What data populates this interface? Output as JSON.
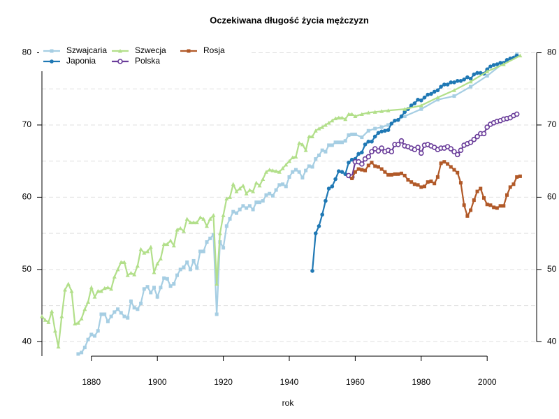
{
  "chart_data": {
    "type": "line",
    "title": "Oczekiwana długość życia mężczyzn",
    "x_label": "rok",
    "xlim": [
      1865,
      2015
    ],
    "xticks": [
      1880,
      1900,
      1920,
      1940,
      1960,
      1980,
      2000
    ],
    "ylim": [
      38,
      81.5
    ],
    "yticks": [
      40,
      50,
      60,
      70,
      80
    ],
    "grid_minor": [
      45,
      55,
      65,
      75
    ],
    "grid": true,
    "legend": "top-left",
    "series": [
      {
        "name": "Szwajcaria",
        "color": "#a6cee3",
        "marker": "square",
        "x": [
          1876,
          1877,
          1878,
          1879,
          1880,
          1881,
          1882,
          1883,
          1884,
          1885,
          1886,
          1887,
          1888,
          1889,
          1890,
          1891,
          1892,
          1893,
          1894,
          1895,
          1896,
          1897,
          1898,
          1899,
          1900,
          1901,
          1902,
          1903,
          1904,
          1905,
          1906,
          1907,
          1908,
          1909,
          1910,
          1911,
          1912,
          1913,
          1914,
          1915,
          1916,
          1917,
          1918,
          1919,
          1920,
          1921,
          1922,
          1923,
          1924,
          1925,
          1926,
          1927,
          1928,
          1929,
          1930,
          1931,
          1932,
          1933,
          1934,
          1935,
          1936,
          1937,
          1938,
          1939,
          1940,
          1941,
          1942,
          1943,
          1944,
          1945,
          1946,
          1947,
          1948,
          1949,
          1950,
          1951,
          1952,
          1953,
          1954,
          1955,
          1956,
          1957,
          1958,
          1959,
          1960,
          1962,
          1964,
          1966,
          1968,
          1970,
          1975,
          1980,
          1985,
          1990,
          1995,
          2000,
          2005,
          2009
        ],
        "values": [
          38.3,
          38.5,
          39.2,
          40.3,
          41,
          40.8,
          41.5,
          43.8,
          43.8,
          42.8,
          43.5,
          44.1,
          44.5,
          44,
          43.5,
          43.3,
          45.6,
          44.7,
          44.5,
          45.3,
          47.3,
          47.6,
          46.8,
          47.5,
          46.2,
          47.5,
          48.8,
          48.7,
          47.7,
          48,
          49.2,
          50,
          50.3,
          51,
          50,
          51.2,
          50.2,
          52.5,
          52.5,
          53.8,
          54.3,
          54.8,
          43.8,
          53.8,
          53,
          56,
          57,
          58,
          57.8,
          58.3,
          58.8,
          58.5,
          58.8,
          58.3,
          59.3,
          59.3,
          59.5,
          60.3,
          60.5,
          60.2,
          61,
          61.7,
          61.8,
          61.5,
          62.8,
          63.5,
          63.8,
          63.5,
          62.7,
          63.7,
          64.3,
          64.2,
          65.3,
          65.8,
          66.5,
          66.3,
          67.2,
          67.2,
          67.6,
          67.6,
          67.6,
          67.8,
          68.6,
          68.7,
          68.7,
          68.3,
          69.2,
          69.5,
          69.7,
          70,
          71.2,
          72.2,
          73.5,
          74,
          75.3,
          76.8,
          78.6,
          79.8
        ]
      },
      {
        "name": "Japonia",
        "color": "#1f78b4",
        "marker": "circle",
        "x": [
          1947,
          1948,
          1949,
          1950,
          1951,
          1952,
          1953,
          1954,
          1955,
          1956,
          1957,
          1958,
          1959,
          1960,
          1961,
          1962,
          1963,
          1964,
          1965,
          1966,
          1967,
          1968,
          1969,
          1970,
          1971,
          1972,
          1973,
          1974,
          1975,
          1976,
          1977,
          1978,
          1979,
          1980,
          1981,
          1982,
          1983,
          1984,
          1985,
          1986,
          1987,
          1988,
          1989,
          1990,
          1991,
          1992,
          1993,
          1994,
          1995,
          1996,
          1997,
          1998,
          1999,
          2000,
          2001,
          2002,
          2003,
          2004,
          2005,
          2006,
          2007,
          2008,
          2009
        ],
        "values": [
          49.8,
          55,
          56,
          57.6,
          59.5,
          61.2,
          61.5,
          62.5,
          63.6,
          63.5,
          63.2,
          64.8,
          65.2,
          65.3,
          66,
          66.2,
          67.3,
          67.7,
          67.7,
          68.4,
          68.9,
          69.1,
          69.2,
          69.3,
          70.2,
          70.6,
          70.7,
          71.2,
          71.8,
          72.2,
          72.7,
          73,
          73.5,
          73.4,
          73.8,
          74.2,
          74.3,
          74.6,
          74.8,
          75.3,
          75.6,
          75.6,
          75.9,
          75.9,
          76.1,
          76.1,
          76.3,
          76.6,
          76.4,
          77,
          77.2,
          77.2,
          77.1,
          77.7,
          78.1,
          78.3,
          78.4,
          78.6,
          78.6,
          79,
          79.2,
          79.3,
          79.6
        ]
      },
      {
        "name": "Szwecja",
        "color": "#b2df8a",
        "marker": "triangle",
        "x": [
          1865,
          1866,
          1867,
          1868,
          1869,
          1870,
          1871,
          1872,
          1873,
          1874,
          1875,
          1876,
          1877,
          1878,
          1879,
          1880,
          1881,
          1882,
          1883,
          1884,
          1885,
          1886,
          1887,
          1888,
          1889,
          1890,
          1891,
          1892,
          1893,
          1894,
          1895,
          1896,
          1897,
          1898,
          1899,
          1900,
          1901,
          1902,
          1903,
          1904,
          1905,
          1906,
          1907,
          1908,
          1909,
          1910,
          1911,
          1912,
          1913,
          1914,
          1915,
          1916,
          1917,
          1918,
          1919,
          1920,
          1921,
          1922,
          1923,
          1924,
          1925,
          1926,
          1927,
          1928,
          1929,
          1930,
          1931,
          1932,
          1933,
          1934,
          1935,
          1936,
          1937,
          1938,
          1939,
          1940,
          1941,
          1942,
          1943,
          1944,
          1945,
          1946,
          1947,
          1948,
          1949,
          1950,
          1951,
          1952,
          1953,
          1954,
          1955,
          1956,
          1957,
          1958,
          1959,
          1960,
          1962,
          1964,
          1966,
          1968,
          1970,
          1975,
          1980,
          1985,
          1990,
          1995,
          2000,
          2005,
          2010
        ],
        "values": [
          43.5,
          43,
          42.7,
          44.2,
          41.5,
          39.3,
          43.5,
          47.2,
          48,
          47,
          42.5,
          42.6,
          43.2,
          44.5,
          45.5,
          47.5,
          46.2,
          47,
          47,
          47.4,
          47.5,
          47.3,
          49,
          50,
          51,
          51,
          49.2,
          49.5,
          49.3,
          50.5,
          52.8,
          52.3,
          52.5,
          53.1,
          49.6,
          50.8,
          51.5,
          53.5,
          53.5,
          54,
          53.3,
          55.5,
          55.7,
          55.3,
          57,
          56.5,
          56.5,
          56.5,
          57.2,
          57,
          56,
          57,
          57.5,
          48,
          55,
          57.5,
          59.8,
          60,
          61.8,
          60.8,
          61.2,
          61.6,
          60.5,
          61,
          60.8,
          62,
          61.6,
          62.5,
          63.5,
          63.8,
          63.7,
          63.6,
          63.5,
          64,
          64.5,
          65,
          65.5,
          65.6,
          67.5,
          67.3,
          66.5,
          68.4,
          68.4,
          69.2,
          69.5,
          69.7,
          70,
          70.3,
          70.6,
          70.9,
          71,
          71,
          70.8,
          71.5,
          71.5,
          71.2,
          71.5,
          71.7,
          71.8,
          71.9,
          72,
          72.2,
          72.7,
          73.8,
          74.8,
          76,
          77.4,
          78.4,
          79.6
        ]
      },
      {
        "name": "Polska",
        "color": "#6a3d9a",
        "marker": "open-circle",
        "x": [
          1958,
          1959,
          1960,
          1961,
          1962,
          1963,
          1964,
          1965,
          1966,
          1967,
          1968,
          1969,
          1970,
          1971,
          1972,
          1973,
          1974,
          1975,
          1976,
          1977,
          1978,
          1979,
          1980,
          1981,
          1982,
          1983,
          1984,
          1985,
          1986,
          1987,
          1988,
          1989,
          1990,
          1991,
          1992,
          1993,
          1994,
          1995,
          1996,
          1997,
          1998,
          1999,
          2000,
          2001,
          2002,
          2003,
          2004,
          2005,
          2006,
          2007,
          2008,
          2009
        ],
        "values": [
          63,
          62.8,
          64.9,
          64.9,
          64.6,
          65.3,
          65.6,
          66.3,
          66.7,
          66.4,
          66.8,
          66.3,
          66.5,
          66.3,
          67.3,
          67.3,
          67.8,
          67.1,
          67,
          66.8,
          66.6,
          66.9,
          66.1,
          67.2,
          67.3,
          67.1,
          66.9,
          66.6,
          66.8,
          66.8,
          67,
          66.7,
          66.3,
          65.9,
          66.5,
          67.2,
          67.4,
          67.6,
          68,
          68.4,
          68.8,
          68.8,
          69.7,
          70.1,
          70.3,
          70.5,
          70.6,
          70.8,
          70.9,
          71,
          71.3,
          71.5
        ]
      },
      {
        "name": "Rosja",
        "color": "#b15928",
        "marker": "square",
        "x": [
          1959,
          1960,
          1961,
          1962,
          1963,
          1964,
          1965,
          1966,
          1967,
          1968,
          1969,
          1970,
          1971,
          1972,
          1973,
          1974,
          1975,
          1976,
          1977,
          1978,
          1979,
          1980,
          1981,
          1982,
          1983,
          1984,
          1985,
          1986,
          1987,
          1988,
          1989,
          1990,
          1991,
          1992,
          1993,
          1994,
          1995,
          1996,
          1997,
          1998,
          1999,
          2000,
          2001,
          2002,
          2003,
          2004,
          2005,
          2006,
          2007,
          2008,
          2009,
          2010
        ],
        "values": [
          62.6,
          63.5,
          63.9,
          63.8,
          63.7,
          64.4,
          64.8,
          64.3,
          64.2,
          63.9,
          63.5,
          63.1,
          63.1,
          63.2,
          63.2,
          63.3,
          63,
          62.4,
          62.1,
          61.8,
          61.7,
          61.4,
          61.5,
          62.1,
          62.2,
          61.9,
          62.8,
          64.7,
          64.9,
          64.6,
          64.2,
          63.8,
          63.4,
          62,
          58.9,
          57.4,
          58.2,
          59.6,
          60.8,
          61.2,
          59.9,
          59,
          58.9,
          58.6,
          58.5,
          58.8,
          58.8,
          60.3,
          61.4,
          61.8,
          62.8,
          62.9
        ]
      }
    ]
  }
}
